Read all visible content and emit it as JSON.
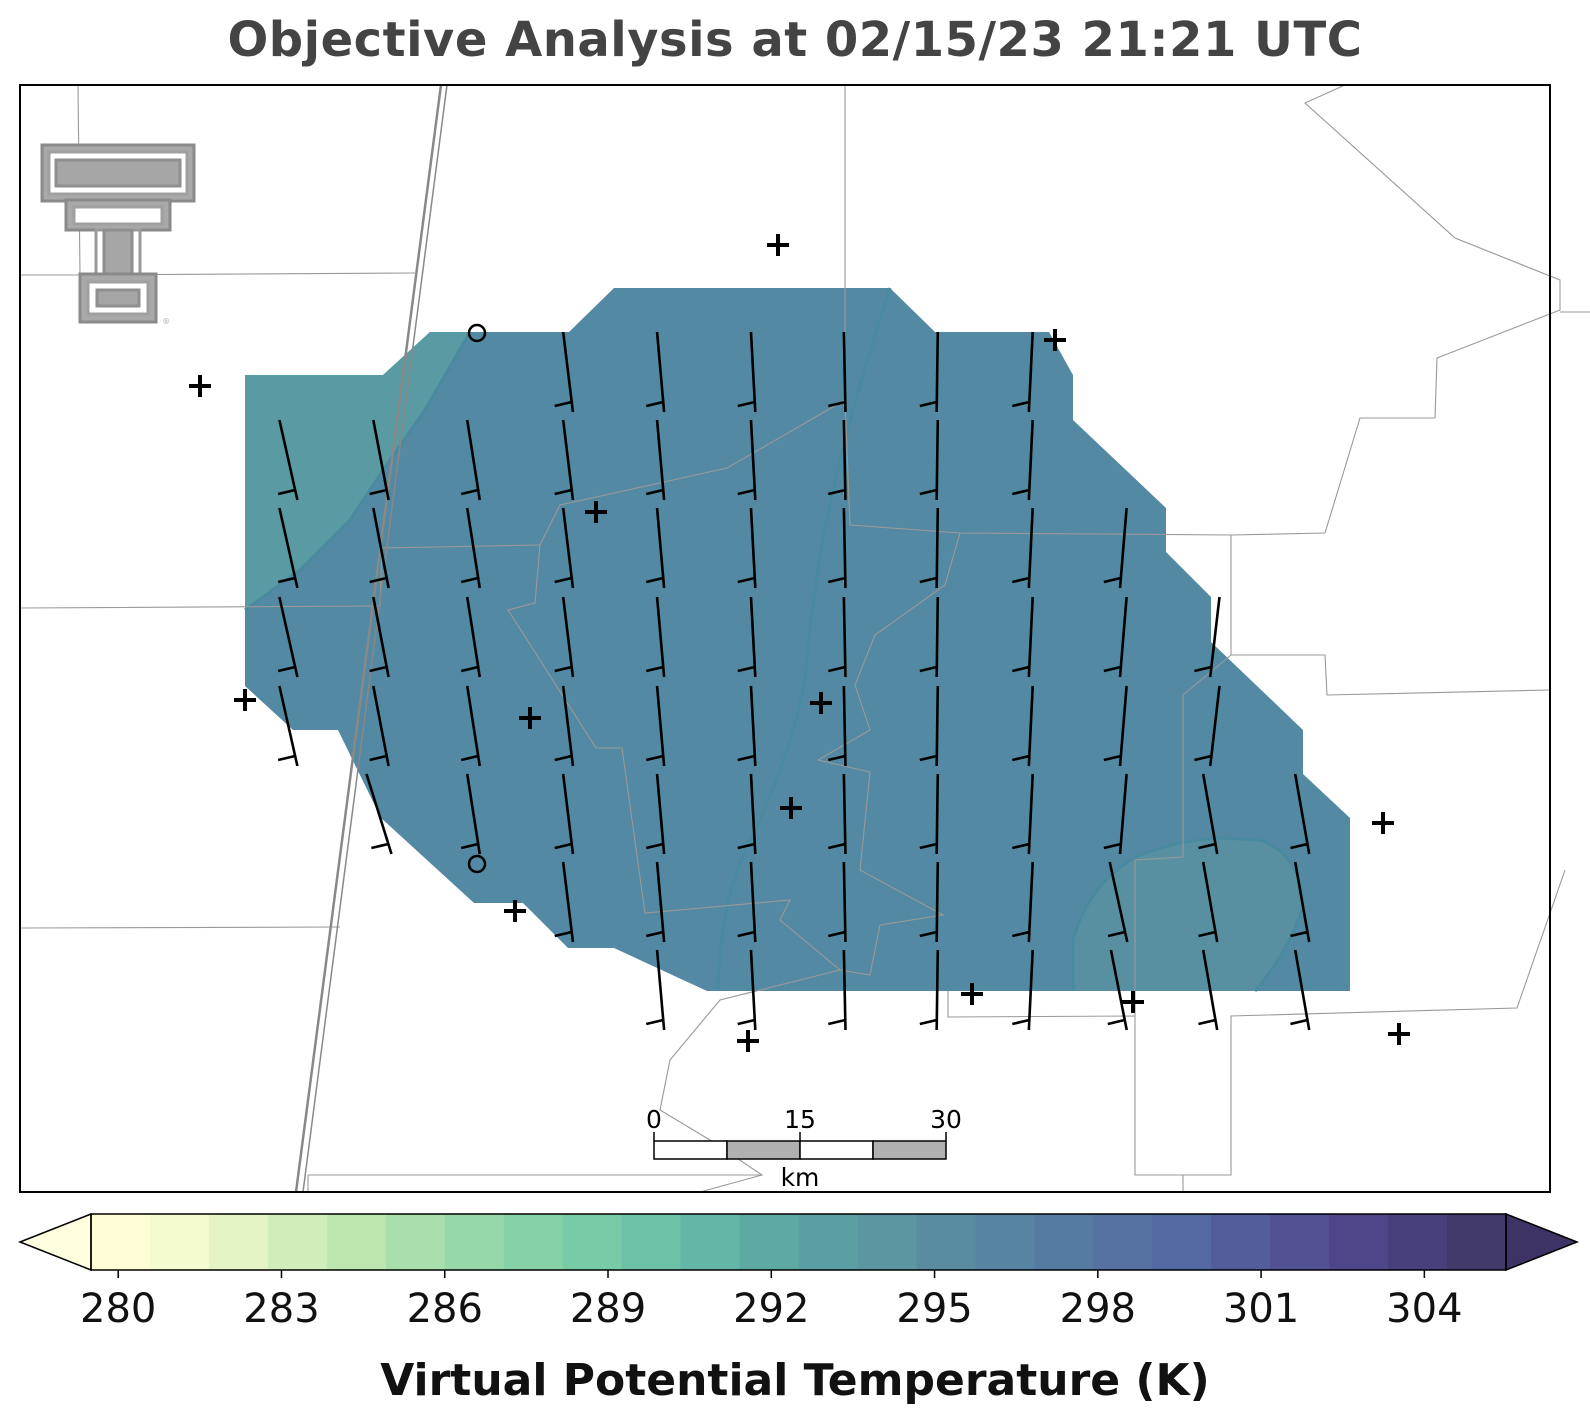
{
  "title": "Objective Analysis at 02/15/23 21:21 UTC",
  "logo": {
    "name": "texas-tech-double-t-logo",
    "text": "TT"
  },
  "scale_bar": {
    "ticks": [
      "0",
      "15",
      "30"
    ],
    "unit": "km"
  },
  "colorbar": {
    "label": "Virtual Potential Temperature (K)",
    "min": 279.5,
    "max": 305.5,
    "step": 1,
    "extend": "both",
    "tick_values": [
      280,
      283,
      286,
      289,
      292,
      295,
      298,
      301,
      304
    ],
    "tick_labels": [
      "280",
      "283",
      "286",
      "289",
      "292",
      "295",
      "298",
      "301",
      "304"
    ],
    "colors": [
      "#fffdd6",
      "#f5fbd0",
      "#e4f4c4",
      "#d1edba",
      "#bee6b1",
      "#a9dead",
      "#97d8aa",
      "#86d2a8",
      "#77cba7",
      "#6cc1a7",
      "#64b6a6",
      "#5ea9a2",
      "#5c9fa2",
      "#5b96a1",
      "#598ca1",
      "#5784a2",
      "#567ba2",
      "#5572a2",
      "#5468a1",
      "#535d9b",
      "#525194",
      "#4d4789",
      "#48407c",
      "#433a6c"
    ],
    "extend_low_color": "#ffffe0",
    "extend_high_color": "#3f3366"
  },
  "analysis_field": {
    "fill_color": "#5389a3",
    "west_band_color": "#5a9aa2",
    "southeast_pocket_color": "#5890a2",
    "contour_color": "#4a8aa0"
  },
  "station_symbols": {
    "plus_count": 17,
    "circle_count": 2
  },
  "wind_barbs_description": "northerly-component wind barbs on regular grid",
  "basemap": {
    "boundary_color": "#999999",
    "highway_color": "#888888"
  }
}
